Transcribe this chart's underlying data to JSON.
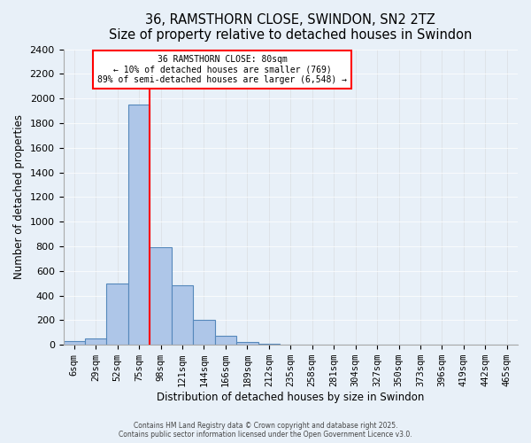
{
  "title": "36, RAMSTHORN CLOSE, SWINDON, SN2 2TZ",
  "subtitle": "Size of property relative to detached houses in Swindon",
  "xlabel": "Distribution of detached houses by size in Swindon",
  "ylabel": "Number of detached properties",
  "bin_labels": [
    "6sqm",
    "29sqm",
    "52sqm",
    "75sqm",
    "98sqm",
    "121sqm",
    "144sqm",
    "166sqm",
    "189sqm",
    "212sqm",
    "235sqm",
    "258sqm",
    "281sqm",
    "304sqm",
    "327sqm",
    "350sqm",
    "373sqm",
    "396sqm",
    "419sqm",
    "442sqm",
    "465sqm"
  ],
  "bar_values": [
    30,
    50,
    500,
    1950,
    790,
    480,
    200,
    70,
    20,
    10,
    5,
    3,
    2,
    1,
    1,
    0,
    0,
    0,
    0,
    0,
    0
  ],
  "bar_color": "#aec6e8",
  "bar_edge_color": "#5588bb",
  "property_line_x": 3.5,
  "annotation_title": "36 RAMSTHORN CLOSE: 80sqm",
  "annotation_line1": "← 10% of detached houses are smaller (769)",
  "annotation_line2": "89% of semi-detached houses are larger (6,548) →",
  "footer_line1": "Contains HM Land Registry data © Crown copyright and database right 2025.",
  "footer_line2": "Contains public sector information licensed under the Open Government Licence v3.0.",
  "ylim": [
    0,
    2400
  ],
  "yticks": [
    0,
    200,
    400,
    600,
    800,
    1000,
    1200,
    1400,
    1600,
    1800,
    2000,
    2200,
    2400
  ],
  "background_color": "#e8f0f8",
  "plot_bg_color": "#e8f0f8"
}
